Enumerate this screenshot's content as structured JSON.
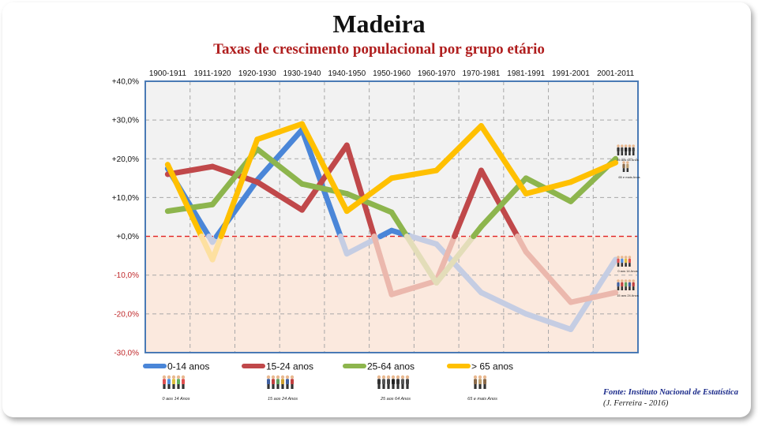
{
  "header": {
    "title": "Madeira",
    "subtitle": "Taxas de crescimento populacional por grupo etário"
  },
  "source": {
    "line1": "Fonte: Instituto Nacional de Estatística",
    "line2": "(J. Ferreira - 2016)"
  },
  "colors": {
    "positive_area": "#f2f2f2",
    "negative_area": "#fbe9de",
    "zero_line": "#e02020",
    "axis_border": "#4a7ab5"
  },
  "chart_data": {
    "type": "line",
    "title": "Taxas de crescimento populacional por grupo etário",
    "categories": [
      "1900-1911",
      "1911-1920",
      "1920-1930",
      "1930-1940",
      "1940-1950",
      "1950-1960",
      "1960-1970",
      "1970-1981",
      "1981-1991",
      "1991-2001",
      "2001-2011"
    ],
    "ylim": [
      -30,
      40
    ],
    "yticks": [
      40,
      30,
      20,
      10,
      0,
      -10,
      -20,
      -30
    ],
    "ytick_labels": [
      "+40,0%",
      "+30,0%",
      "+20,0%",
      "+10,0%",
      "+0,0%",
      "-10,0%",
      "-20,0%",
      "-30,0%"
    ],
    "grid": true,
    "legend_position": "bottom",
    "series": [
      {
        "name": "0-14 anos",
        "color": "#4a86d8",
        "faded_color": "#c5cde3",
        "values": [
          17.5,
          -1.5,
          14.5,
          27.5,
          -4.5,
          1.5,
          -2,
          -14.5,
          -20,
          -24,
          -6
        ]
      },
      {
        "name": "15-24 anos",
        "color": "#c0484a",
        "faded_color": "#ebb8ad",
        "values": [
          16,
          18,
          14,
          6.8,
          23.5,
          -15,
          -11.5,
          17,
          -4,
          -17,
          -14.5
        ]
      },
      {
        "name": "25-64 anos",
        "color": "#8db54d",
        "faded_color": "#e3ddb9",
        "values": [
          6.5,
          8.2,
          22.5,
          13.5,
          11,
          6.2,
          -12,
          2.5,
          15,
          9,
          20
        ]
      },
      {
        "name": "> 65 anos",
        "color": "#ffc000",
        "faded_color": "#fde0a0",
        "values": [
          18.5,
          -6,
          25,
          29,
          6.5,
          15,
          17,
          28.5,
          11,
          14,
          19
        ]
      }
    ],
    "legend_captions": [
      "0 aos 14 Anos",
      "15 aos 24 Anos",
      "25 aos 64 Anos",
      "65 e mais Anos"
    ],
    "side_captions": {
      "top": [
        "25 aos 64 Anos",
        "65 e mais Anos"
      ],
      "bottom": [
        "0 aos 14 Anos",
        "15 aos 24 Anos"
      ]
    }
  }
}
